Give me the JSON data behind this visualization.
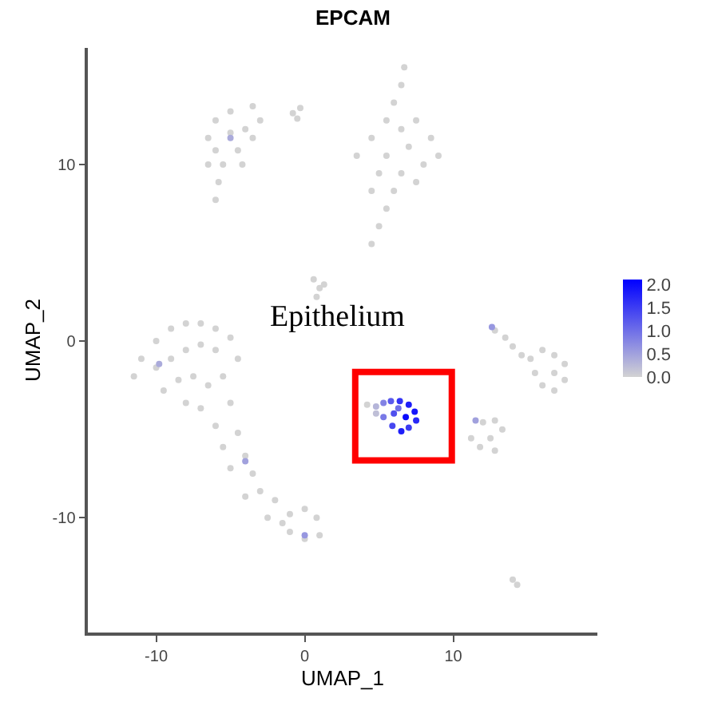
{
  "chart_data": {
    "type": "scatter",
    "title": "EPCAM",
    "xlabel": "UMAP_1",
    "ylabel": "UMAP_2",
    "xlim": [
      -14.6,
      19.7
    ],
    "ylim": [
      -16.5,
      16.6
    ],
    "xticks": [
      -10,
      0,
      10
    ],
    "yticks": [
      -10,
      0,
      10
    ],
    "clim": [
      0,
      2.1
    ],
    "cticks": [
      {
        "value": 0,
        "label": "0.0"
      },
      0.5,
      {
        "value": 1,
        "label": "1.0"
      },
      1.5,
      {
        "value": 2,
        "label": "2.0"
      }
    ],
    "annotations": [
      "Epithelium"
    ],
    "series": [
      {
        "x": [
          -6.5,
          -6,
          -5,
          -3.5,
          -3,
          -4,
          -5,
          -6,
          -4.5,
          -3.5,
          -5.5,
          -6.5,
          -5.8,
          -6,
          -4.2,
          -5,
          -0.8,
          -0.3,
          -0.5,
          6.7,
          6.5,
          6,
          5.5,
          4.5,
          3.5,
          6.5,
          7.5,
          8.5,
          7,
          5.5,
          8,
          9,
          6.5,
          5,
          7.5,
          4.5,
          6,
          5.5,
          5,
          4.5,
          0.6,
          1,
          0.8,
          1.3,
          -11.5,
          -11,
          -10,
          -9,
          -8,
          -7,
          -6,
          -5,
          -4.5,
          -10,
          -9,
          -8,
          -7,
          -6,
          -5.5,
          -8.5,
          -7.5,
          -6.5,
          -9.5,
          -8,
          -7,
          -5,
          -6,
          -4.5,
          -5.5,
          -4,
          -3.5,
          -5,
          -3,
          -2,
          -4,
          -2.5,
          -1,
          0,
          0.8,
          1,
          0,
          -1,
          -1.5,
          -9.8,
          -4,
          0,
          4.2,
          4.8,
          5.3,
          5.8,
          6.4,
          7,
          7.4,
          7.5,
          7,
          6.5,
          5.9,
          5.3,
          6,
          6.8,
          4.8,
          6.3,
          12.8,
          13.5,
          14,
          14.6,
          15.2,
          16,
          16.8,
          17.5,
          17.5,
          16.8,
          16,
          15.5,
          16.8,
          12.6,
          11.2,
          12,
          12.8,
          13.3,
          12.5,
          11.8,
          12.8,
          11.5,
          14,
          14.3
        ],
        "values": [
          11.5,
          12.5,
          13,
          13.3,
          12.5,
          12,
          11.8,
          10.8,
          10.8,
          11.5,
          10,
          10,
          9,
          8,
          10,
          11.5,
          12.9,
          13.2,
          12.6,
          15.5,
          14.5,
          13.5,
          12.5,
          11.5,
          10.5,
          12,
          12.5,
          11.5,
          11,
          10.5,
          10,
          10.5,
          9.5,
          9.5,
          9,
          8.5,
          8.5,
          7.5,
          6.5,
          5.5,
          3.5,
          3,
          2.5,
          3.2,
          -2,
          -1,
          0,
          0.7,
          1,
          1,
          0.7,
          0.2,
          -1,
          -1.5,
          -1,
          -0.5,
          -0.2,
          -0.5,
          -2,
          -2.2,
          -2,
          -2.5,
          -2.8,
          -3.5,
          -3.8,
          -3.5,
          -4.8,
          -5.2,
          -6,
          -6.5,
          -7.5,
          -7.2,
          -8.5,
          -9,
          -8.8,
          -10,
          -9.8,
          -9.5,
          -10,
          -11,
          -11.2,
          -10.8,
          -10.3,
          -1.3,
          -6.8,
          -11,
          -3.6,
          -3.7,
          -3.5,
          -3.4,
          -3.4,
          -3.6,
          -4,
          -4.5,
          -4.9,
          -5.1,
          -4.8,
          -4.3,
          -4.1,
          -4.3,
          -4.1,
          -3.8,
          0.6,
          0.2,
          -0.3,
          -0.8,
          -1,
          -0.5,
          -0.8,
          -1.3,
          -2.2,
          -2.8,
          -2.5,
          -1.8,
          -1.8,
          0.8,
          -5.5,
          -4.6,
          -4.5,
          -5,
          -5.5,
          -6,
          -6.2,
          -4.5,
          -13.5,
          -13.8
        ],
        "cvalues": [
          0,
          0,
          0,
          0,
          0,
          0,
          0,
          0,
          0,
          0,
          0,
          0,
          0,
          0,
          0,
          0.4,
          0,
          0,
          0,
          0,
          0,
          0,
          0,
          0,
          0,
          0,
          0,
          0,
          0,
          0,
          0,
          0,
          0,
          0,
          0,
          0,
          0,
          0,
          0,
          0,
          0,
          0,
          0,
          0,
          0,
          0,
          0,
          0,
          0,
          0,
          0,
          0,
          0,
          0,
          0,
          0,
          0,
          0,
          0,
          0,
          0,
          0,
          0,
          0,
          0,
          0,
          0,
          0,
          0,
          0,
          0,
          0,
          0,
          0,
          0,
          0,
          0,
          0,
          0,
          0,
          0,
          0,
          0,
          0.4,
          0.5,
          0.6,
          0,
          0.3,
          0.8,
          1.2,
          1.6,
          1.8,
          1.9,
          1.7,
          1.5,
          1.8,
          1.4,
          0.9,
          1.3,
          2,
          0.2,
          1.0,
          0,
          0,
          0,
          0,
          0,
          0,
          0,
          0,
          0,
          0,
          0,
          0,
          0,
          0.6,
          0,
          0,
          0,
          0,
          0,
          0,
          0,
          0.5,
          0,
          0
        ]
      }
    ]
  }
}
